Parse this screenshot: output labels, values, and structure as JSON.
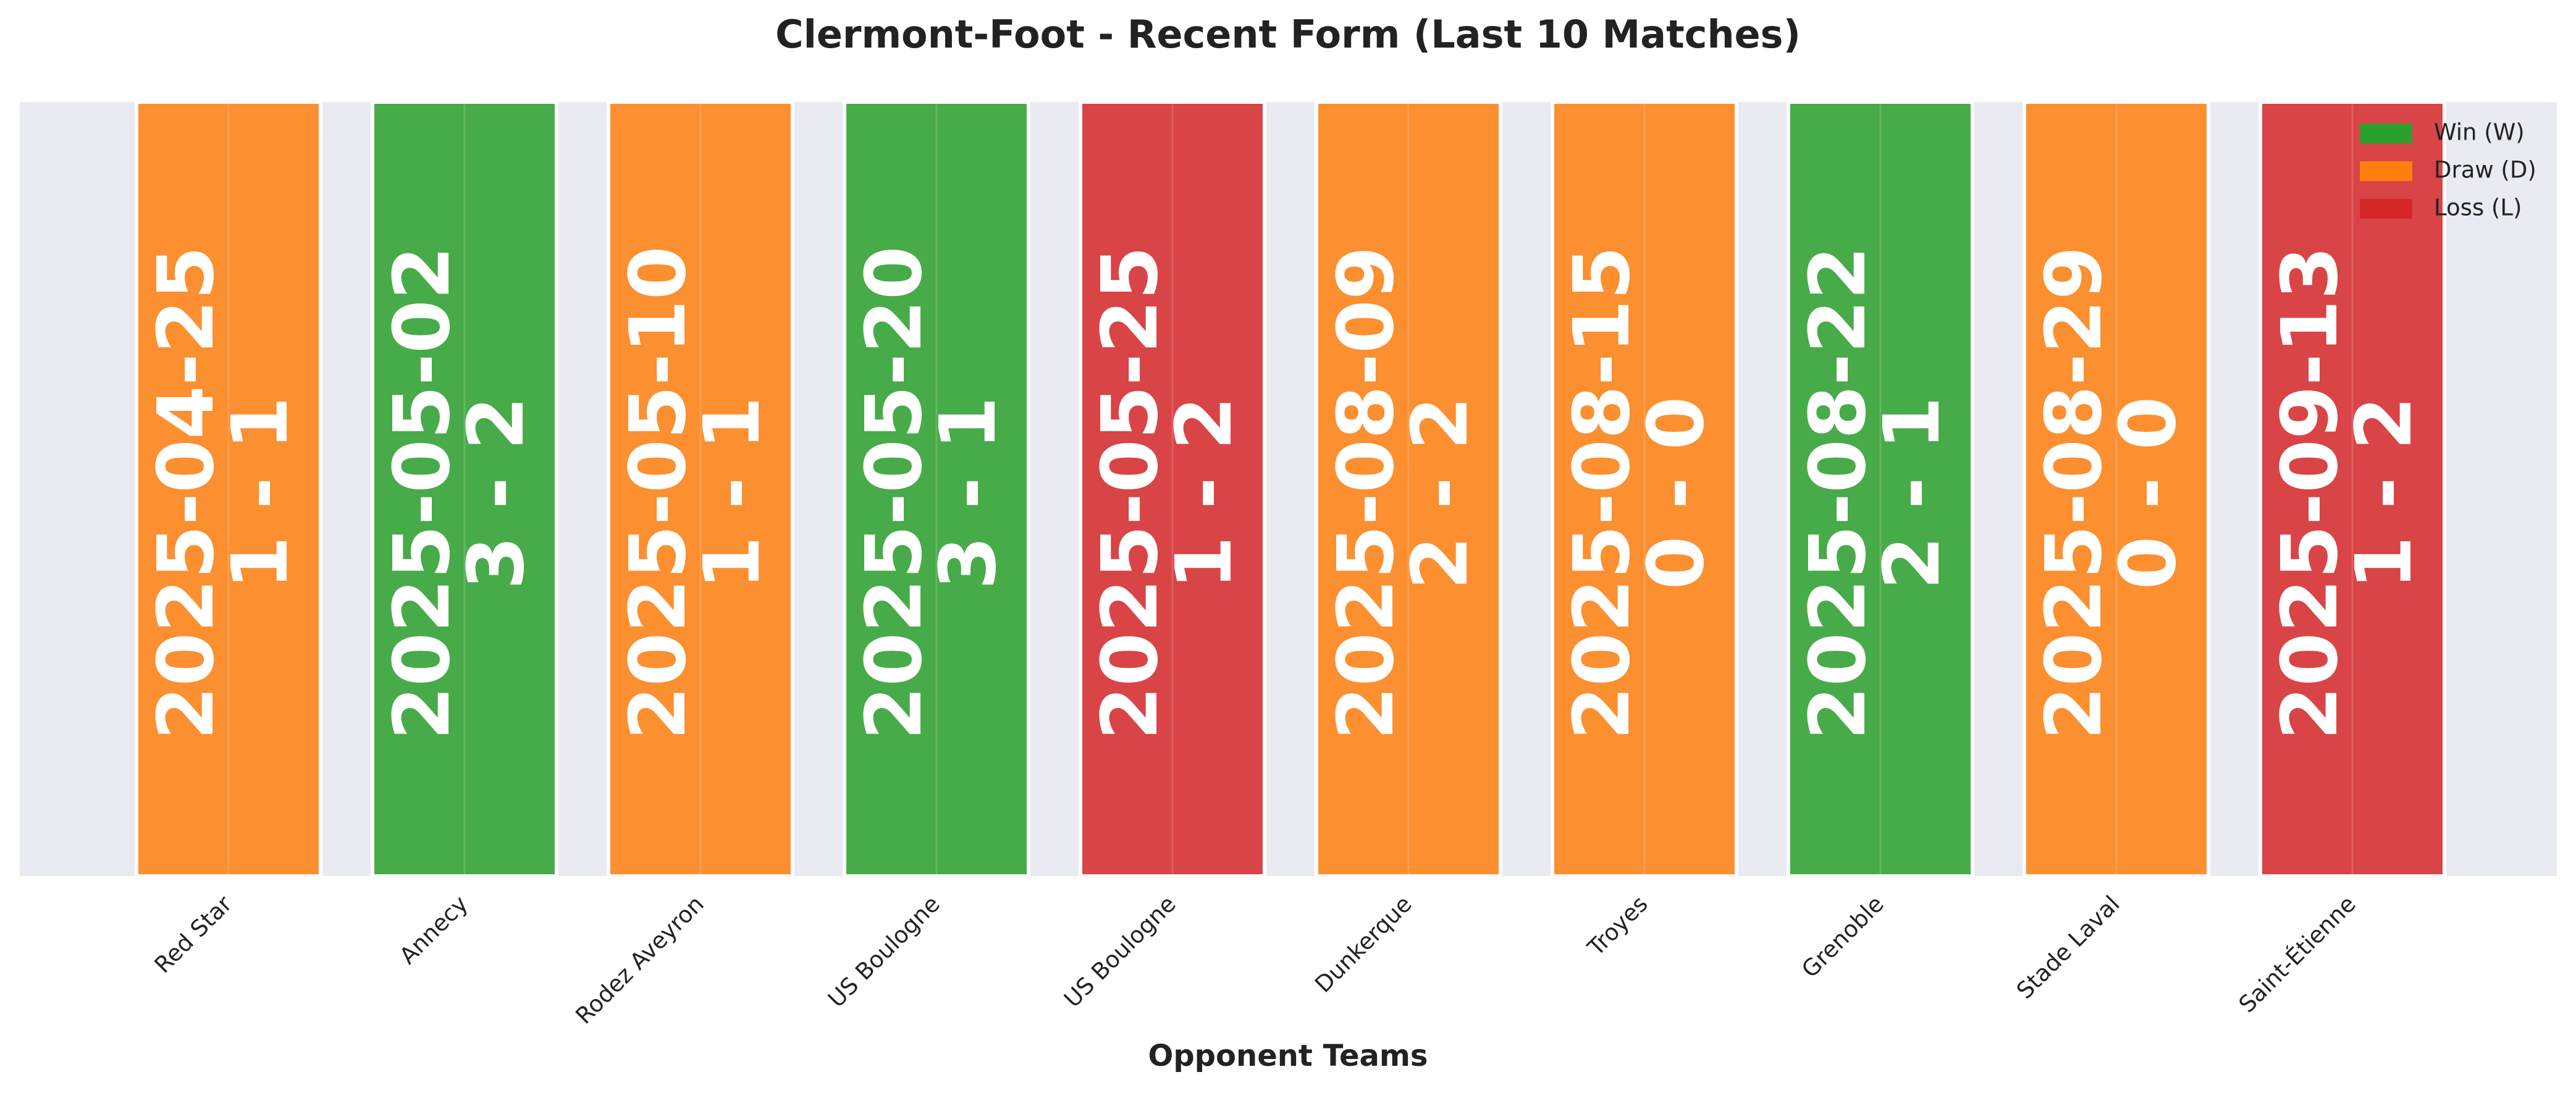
{
  "chart_data": {
    "type": "bar",
    "title": "Clermont-Foot - Recent Form (Last 10 Matches)",
    "x_label": "Opponent Teams",
    "categories": [
      "Red Star",
      "Annecy",
      "Rodez Aveyron",
      "US Boulogne",
      "US Boulogne",
      "Dunkerque",
      "Troyes",
      "Grenoble",
      "Stade Laval",
      "Saint-Étienne"
    ],
    "dates": [
      "2025-04-25",
      "2025-05-02",
      "2025-05-10",
      "2025-05-20",
      "2025-05-25",
      "2025-08-09",
      "2025-08-15",
      "2025-08-22",
      "2025-08-29",
      "2025-09-13"
    ],
    "scores": [
      "1 - 1",
      "3 - 2",
      "1 - 1",
      "3 - 1",
      "1 - 2",
      "2 - 2",
      "0 - 0",
      "2 - 1",
      "0 - 0",
      "1 - 2"
    ],
    "bar_colors": [
      "#ff7f0e",
      "#2ca02c",
      "#ff7f0e",
      "#2ca02c",
      "#d62728",
      "#ff7f0e",
      "#ff7f0e",
      "#2ca02c",
      "#ff7f0e",
      "#d62728"
    ],
    "legend": {
      "position": "upper right",
      "entries": [
        {
          "name": "Win (W)",
          "color": "#2ca02c"
        },
        {
          "name": "Draw (D)",
          "color": "#ff7f0e"
        },
        {
          "name": "Loss (L)",
          "color": "#d62728"
        }
      ]
    }
  }
}
